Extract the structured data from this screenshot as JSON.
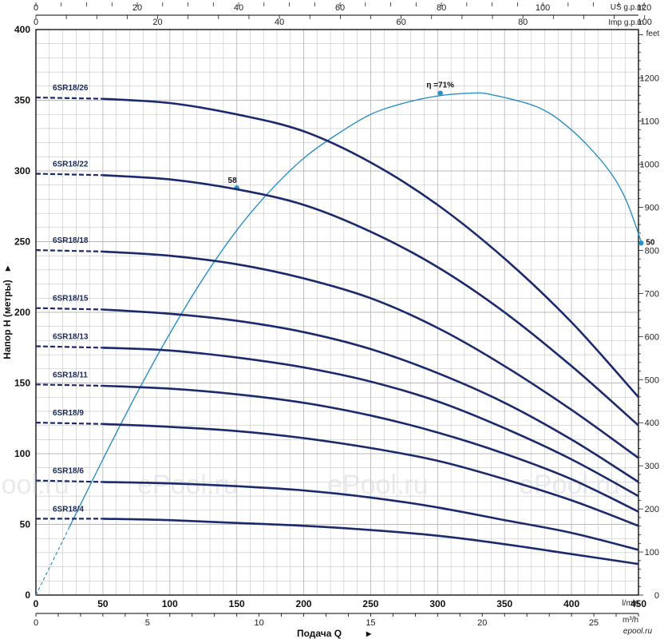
{
  "watermark": "ePool.ru",
  "site_badge": "epool.ru",
  "colors": {
    "pump_curve": "#1a2a6c",
    "efficiency_curve": "#2a8fc4",
    "grid": "#b9b9b9",
    "axis": "#000000"
  },
  "axes": {
    "ylabel": "Напор H  (метры)",
    "xlabel": "Подача Q",
    "units": {
      "lmin": "l/min",
      "m3h": "m³/h",
      "us": "US g.p.m.",
      "imp": "Imp g.p.m.",
      "feet": "feet"
    }
  },
  "chart_data": {
    "type": "line",
    "x_unit": "l/min",
    "y_unit": "m",
    "xlim": [
      0,
      450
    ],
    "ylim": [
      0,
      400
    ],
    "grid": true,
    "x_ticks": [
      "0",
      "50",
      "100",
      "150",
      "200",
      "250",
      "300",
      "350",
      "400",
      "450"
    ],
    "y_ticks": [
      "0",
      "50",
      "100",
      "150",
      "200",
      "250",
      "300",
      "350",
      "400"
    ],
    "m3h_ticks": [
      "0",
      "5",
      "10",
      "15",
      "20",
      "25"
    ],
    "us_ticks": [
      "0",
      "20",
      "40",
      "60",
      "80",
      "100",
      "120"
    ],
    "imp_ticks": [
      "0",
      "20",
      "40",
      "60",
      "80",
      "100"
    ],
    "feet_ticks": [
      "0",
      "100",
      "200",
      "300",
      "400",
      "500",
      "600",
      "700",
      "800",
      "900",
      "1000",
      "1100",
      "1200"
    ],
    "series": [
      {
        "name": "6SR18/26",
        "dashed_to_x": 50,
        "points": [
          [
            0,
            352
          ],
          [
            50,
            351
          ],
          [
            100,
            348
          ],
          [
            150,
            340
          ],
          [
            200,
            328
          ],
          [
            250,
            306
          ],
          [
            300,
            276
          ],
          [
            350,
            238
          ],
          [
            400,
            193
          ],
          [
            450,
            140
          ]
        ]
      },
      {
        "name": "6SR18/22",
        "dashed_to_x": 50,
        "points": [
          [
            0,
            298
          ],
          [
            50,
            297
          ],
          [
            100,
            294
          ],
          [
            150,
            287
          ],
          [
            200,
            276
          ],
          [
            250,
            257
          ],
          [
            300,
            232
          ],
          [
            350,
            200
          ],
          [
            400,
            162
          ],
          [
            450,
            120
          ]
        ]
      },
      {
        "name": "6SR18/18",
        "dashed_to_x": 50,
        "points": [
          [
            0,
            244
          ],
          [
            50,
            243
          ],
          [
            100,
            240
          ],
          [
            150,
            234
          ],
          [
            200,
            224
          ],
          [
            250,
            210
          ],
          [
            300,
            189
          ],
          [
            350,
            162
          ],
          [
            400,
            131
          ],
          [
            450,
            97
          ]
        ]
      },
      {
        "name": "6SR18/15",
        "dashed_to_x": 50,
        "points": [
          [
            0,
            203
          ],
          [
            50,
            202
          ],
          [
            100,
            199
          ],
          [
            150,
            194
          ],
          [
            200,
            186
          ],
          [
            250,
            174
          ],
          [
            300,
            157
          ],
          [
            350,
            136
          ],
          [
            400,
            110
          ],
          [
            450,
            80
          ]
        ]
      },
      {
        "name": "6SR18/13",
        "dashed_to_x": 50,
        "points": [
          [
            0,
            176
          ],
          [
            50,
            175
          ],
          [
            100,
            173
          ],
          [
            150,
            168
          ],
          [
            200,
            161
          ],
          [
            250,
            151
          ],
          [
            300,
            137
          ],
          [
            350,
            118
          ],
          [
            400,
            96
          ],
          [
            450,
            70
          ]
        ]
      },
      {
        "name": "6SR18/11",
        "dashed_to_x": 50,
        "points": [
          [
            0,
            149
          ],
          [
            50,
            148
          ],
          [
            100,
            146
          ],
          [
            150,
            142
          ],
          [
            200,
            136
          ],
          [
            250,
            127
          ],
          [
            300,
            115
          ],
          [
            350,
            100
          ],
          [
            400,
            82
          ],
          [
            450,
            59
          ]
        ]
      },
      {
        "name": "6SR18/9",
        "dashed_to_x": 50,
        "points": [
          [
            0,
            122
          ],
          [
            50,
            121
          ],
          [
            100,
            119
          ],
          [
            150,
            116
          ],
          [
            200,
            111
          ],
          [
            250,
            104
          ],
          [
            300,
            95
          ],
          [
            350,
            82
          ],
          [
            400,
            67
          ],
          [
            450,
            49
          ]
        ]
      },
      {
        "name": "6SR18/6",
        "dashed_to_x": 50,
        "points": [
          [
            0,
            81
          ],
          [
            50,
            80
          ],
          [
            100,
            79
          ],
          [
            150,
            77
          ],
          [
            200,
            74
          ],
          [
            250,
            69
          ],
          [
            300,
            62
          ],
          [
            350,
            53
          ],
          [
            400,
            44
          ],
          [
            450,
            32
          ]
        ]
      },
      {
        "name": "6SR18/4",
        "dashed_to_x": 50,
        "points": [
          [
            0,
            54
          ],
          [
            50,
            54
          ],
          [
            100,
            53
          ],
          [
            150,
            51
          ],
          [
            200,
            49
          ],
          [
            250,
            46
          ],
          [
            300,
            42
          ],
          [
            350,
            36
          ],
          [
            400,
            29
          ],
          [
            450,
            22
          ]
        ]
      }
    ],
    "efficiency": {
      "dashed_to_x": 25,
      "points": [
        [
          0,
          0
        ],
        [
          25,
          48
        ],
        [
          50,
          96
        ],
        [
          75,
          142
        ],
        [
          100,
          185
        ],
        [
          125,
          224
        ],
        [
          150,
          258
        ],
        [
          175,
          286
        ],
        [
          200,
          309
        ],
        [
          225,
          326
        ],
        [
          250,
          340
        ],
        [
          275,
          348
        ],
        [
          300,
          353
        ],
        [
          325,
          355
        ],
        [
          340,
          354
        ],
        [
          375,
          345
        ],
        [
          400,
          329
        ],
        [
          425,
          304
        ],
        [
          440,
          281
        ],
        [
          452,
          250
        ]
      ],
      "markers": [
        {
          "label": "58",
          "x": 150,
          "y": 288
        },
        {
          "label": "η =71%",
          "x": 302,
          "y": 355
        },
        {
          "label": "50",
          "x": 452,
          "y": 249
        }
      ]
    }
  }
}
